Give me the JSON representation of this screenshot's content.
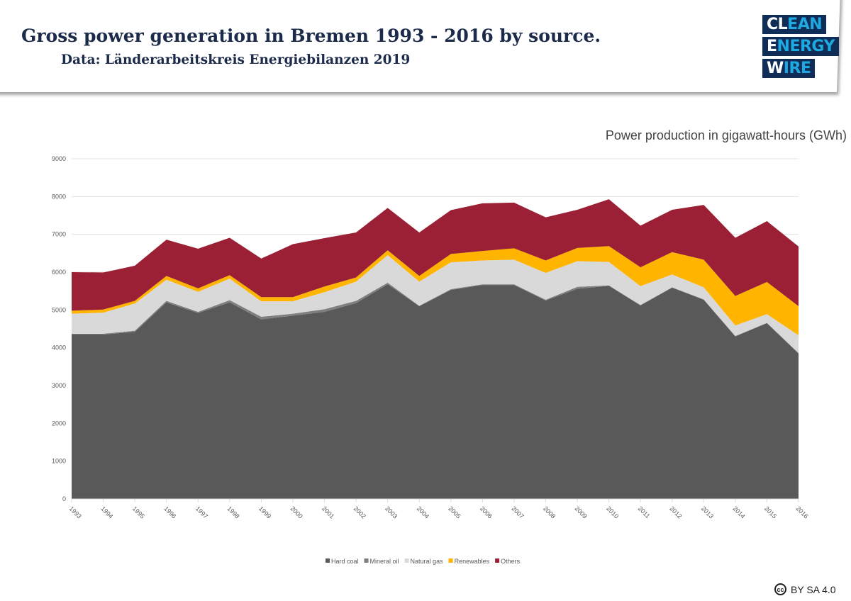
{
  "header": {
    "title": "Gross power generation in Bremen 1993 - 2016 by source.",
    "subtitle": "Data: Länderarbeitskreis Energiebilanzen 2019"
  },
  "logo": {
    "line1": "CLEAN",
    "line2": "ENERGY",
    "line3": "WIRE"
  },
  "license": {
    "icon": "creative-commons-icon",
    "text": "BY SA 4.0"
  },
  "chart_data": {
    "type": "area",
    "stacked": true,
    "title": "",
    "ylabel": "Power production in gigawatt-hours (GWh)",
    "ylim": [
      0,
      9000
    ],
    "yticks": [
      0,
      1000,
      2000,
      3000,
      4000,
      5000,
      6000,
      7000,
      8000,
      9000
    ],
    "grid": true,
    "legend_position": "bottom",
    "categories": [
      "1993",
      "1994",
      "1995",
      "1996",
      "1997",
      "1998",
      "1999",
      "2000",
      "2001",
      "2002",
      "2003",
      "2004",
      "2005",
      "2006",
      "2007",
      "2008",
      "2009",
      "2010",
      "2011",
      "2012",
      "2013",
      "2014",
      "2015",
      "2016"
    ],
    "series": [
      {
        "name": "Hard coal",
        "color": "#595959",
        "values": [
          4350,
          4350,
          4420,
          5200,
          4920,
          5200,
          4750,
          4850,
          4950,
          5180,
          5680,
          5100,
          5530,
          5660,
          5660,
          5250,
          5560,
          5640,
          5120,
          5590,
          5270,
          4300,
          4650,
          3850
        ]
      },
      {
        "name": "Mineral oil",
        "color": "#7f7f7f",
        "values": [
          20,
          20,
          30,
          40,
          30,
          60,
          70,
          50,
          70,
          60,
          40,
          10,
          20,
          20,
          20,
          20,
          50,
          10,
          10,
          10,
          10,
          10,
          10,
          10
        ]
      },
      {
        "name": "Natural gas",
        "color": "#d9d9d9",
        "values": [
          530,
          560,
          720,
          560,
          530,
          570,
          410,
          330,
          450,
          510,
          730,
          640,
          710,
          630,
          650,
          710,
          680,
          620,
          500,
          340,
          320,
          280,
          230,
          470
        ]
      },
      {
        "name": "Renewables",
        "color": "#ffb400",
        "values": [
          80,
          80,
          70,
          100,
          90,
          90,
          110,
          110,
          150,
          110,
          130,
          150,
          220,
          250,
          300,
          330,
          350,
          420,
          500,
          590,
          730,
          780,
          850,
          770
        ]
      },
      {
        "name": "Others",
        "color": "#9b2035",
        "values": [
          1020,
          980,
          930,
          960,
          1050,
          990,
          1020,
          1400,
          1280,
          1190,
          1120,
          1150,
          1160,
          1260,
          1210,
          1140,
          1010,
          1240,
          1100,
          1120,
          1450,
          1540,
          1610,
          1580
        ]
      }
    ]
  }
}
